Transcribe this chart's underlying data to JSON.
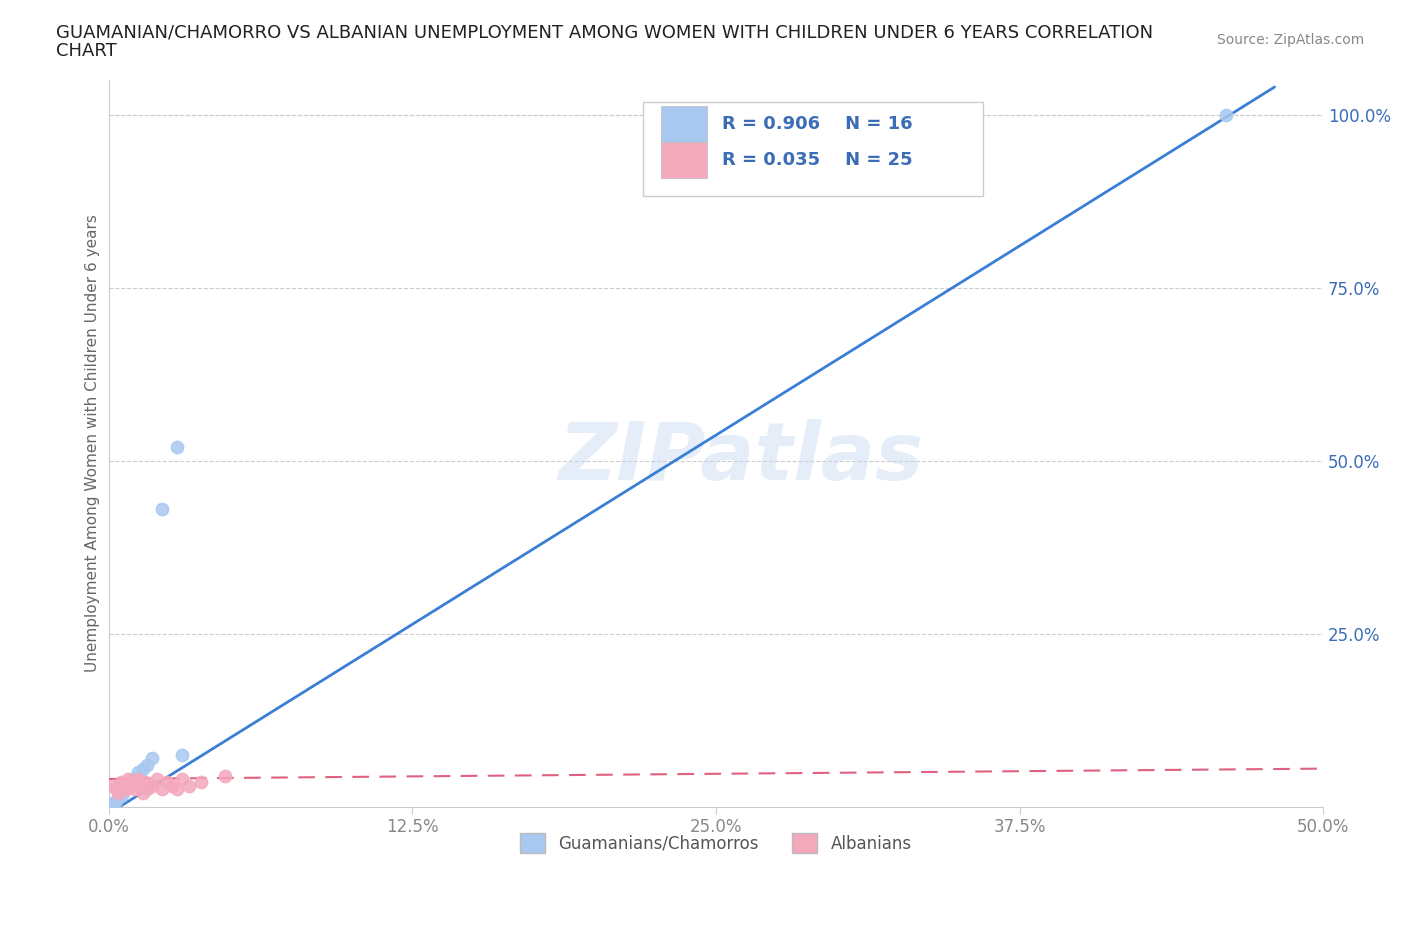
{
  "title_line1": "GUAMANIAN/CHAMORRO VS ALBANIAN UNEMPLOYMENT AMONG WOMEN WITH CHILDREN UNDER 6 YEARS CORRELATION",
  "title_line2": "CHART",
  "source": "Source: ZipAtlas.com",
  "ylabel": "Unemployment Among Women with Children Under 6 years",
  "xlim": [
    0.0,
    0.5
  ],
  "ylim": [
    0.0,
    1.05
  ],
  "xtick_labels": [
    "0.0%",
    "12.5%",
    "25.0%",
    "37.5%",
    "50.0%"
  ],
  "xtick_vals": [
    0.0,
    0.125,
    0.25,
    0.375,
    0.5
  ],
  "ytick_labels": [
    "25.0%",
    "50.0%",
    "75.0%",
    "100.0%"
  ],
  "ytick_vals": [
    0.25,
    0.5,
    0.75,
    1.0
  ],
  "guamanian_color": "#a8c8f0",
  "albanian_color": "#f4a8bc",
  "guamanian_line_color": "#3a7fd5",
  "albanian_line_color": "#e06080",
  "guamanian_R": 0.906,
  "guamanian_N": 16,
  "albanian_R": 0.035,
  "albanian_N": 25,
  "watermark": "ZIPatlas",
  "background_color": "#ffffff",
  "grid_color": "#cccccc",
  "title_color": "#222222",
  "tick_color": "#888888",
  "right_tick_color": "#3a6db5",
  "legend_label_color": "#3a6db5",
  "source_color": "#888888"
}
